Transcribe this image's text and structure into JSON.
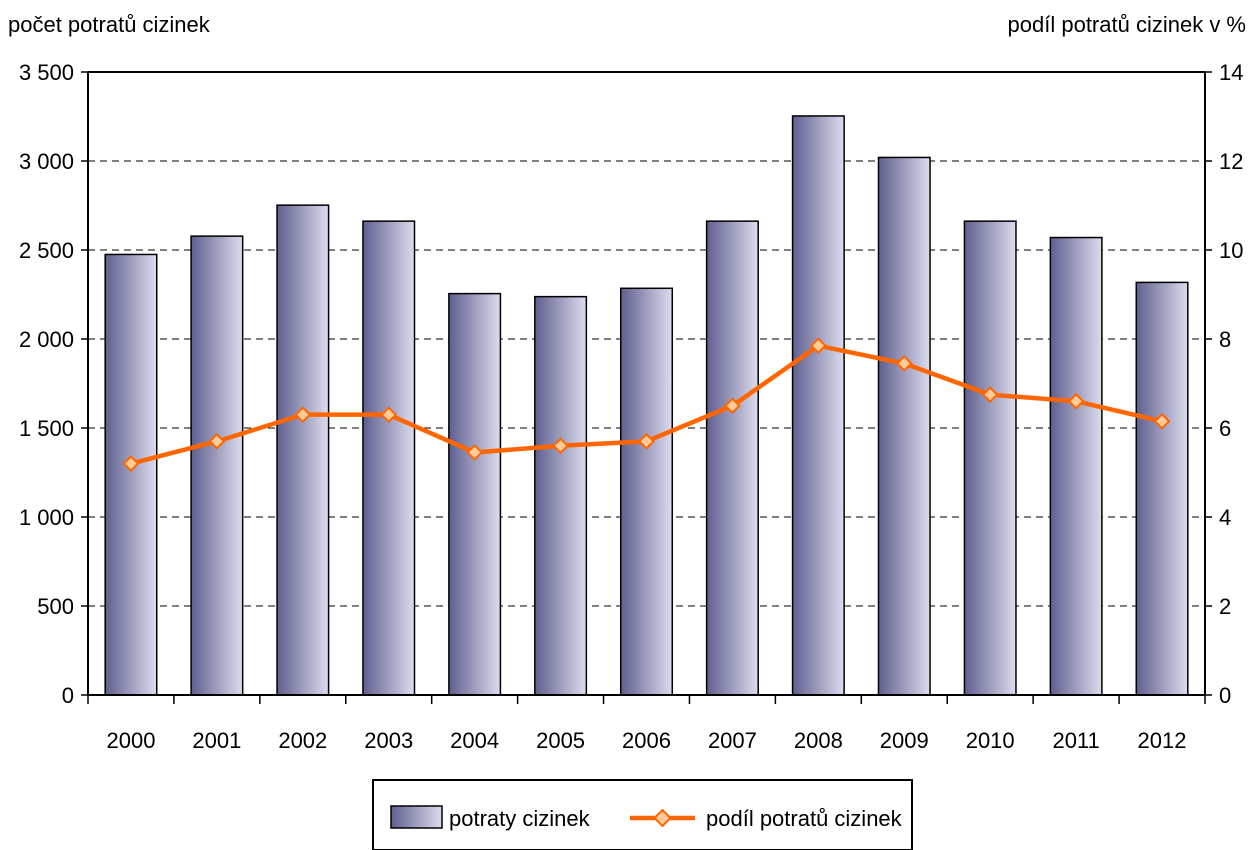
{
  "chart_data": {
    "type": "bar",
    "categories": [
      "2000",
      "2001",
      "2002",
      "2003",
      "2004",
      "2005",
      "2006",
      "2007",
      "2008",
      "2009",
      "2010",
      "2011",
      "2012"
    ],
    "series": [
      {
        "name": "potraty cizinek",
        "type": "bar",
        "axis": "left",
        "values": [
          2475,
          2578,
          2752,
          2662,
          2255,
          2238,
          2285,
          2662,
          3253,
          3020,
          2662,
          2570,
          2318
        ]
      },
      {
        "name": "podíl potratů cizinek",
        "type": "line",
        "axis": "right",
        "values": [
          5.2,
          5.7,
          6.3,
          6.3,
          5.45,
          5.6,
          5.7,
          6.5,
          7.85,
          7.45,
          6.75,
          6.6,
          6.15
        ]
      }
    ],
    "ylabel_left": "počet potratů cizinek",
    "ylabel_right": "podíl potratů cizinek v %",
    "ylim_left": [
      0,
      3500
    ],
    "ylim_right": [
      0,
      14
    ],
    "yticks_left": [
      "0",
      "500",
      "1 000",
      "1 500",
      "2 000",
      "2 500",
      "3 000",
      "3 500"
    ],
    "yticks_right": [
      "0",
      "2",
      "4",
      "6",
      "8",
      "10",
      "12",
      "14"
    ],
    "grid": true,
    "legend_position": "bottom",
    "colors": {
      "bar_dark": "#5f5f8f",
      "bar_light": "#dcdcee",
      "line": "#ff6600",
      "marker_fill": "#ffcc99",
      "grid": "#000000"
    }
  }
}
